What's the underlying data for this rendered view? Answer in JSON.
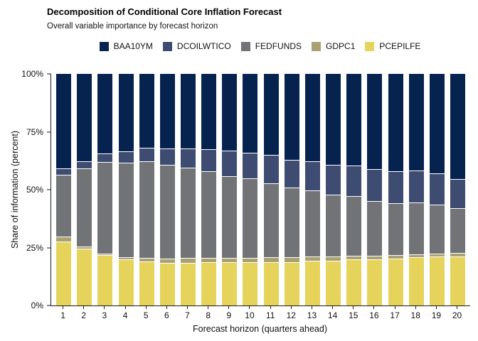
{
  "header": {
    "title": "Decomposition of Conditional Core Inflation Forecast",
    "subtitle": "Overall variable importance by forecast horizon"
  },
  "colors": {
    "background": "#ffffff",
    "axis": "#1a1a1a",
    "segment_separator": "#ffffff",
    "baa10ym": "#062350",
    "dcoilwtico": "#3e4c72",
    "fedfunds": "#727376",
    "gdpc1": "#a9a172",
    "pcepilfe": "#e6d35c"
  },
  "chart_data": {
    "type": "bar",
    "stacked": true,
    "title": "Decomposition of Conditional Core Inflation Forecast",
    "subtitle": "Overall variable importance by forecast horizon",
    "xlabel": "Forecast horizon (quarters ahead)",
    "ylabel": "Share of information (percent)",
    "legend_position": "top-center",
    "grid": false,
    "ylim": [
      0,
      100
    ],
    "y_ticks": [
      "0%",
      "25%",
      "50%",
      "75%",
      "100%"
    ],
    "y_tick_values": [
      0,
      25,
      50,
      75,
      100
    ],
    "categories": [
      "1",
      "2",
      "3",
      "4",
      "5",
      "6",
      "7",
      "8",
      "9",
      "10",
      "11",
      "12",
      "13",
      "14",
      "15",
      "16",
      "17",
      "18",
      "19",
      "20"
    ],
    "stack_order_top_to_bottom": [
      "BAA10YM",
      "DCOILWTICO",
      "FEDFUNDS",
      "GDPC1",
      "PCEPILFE"
    ],
    "series": [
      {
        "name": "BAA10YM",
        "color": "#062350",
        "values": [
          40.7,
          37.6,
          34.4,
          33.3,
          32.0,
          32.2,
          32.2,
          32.5,
          33.0,
          34.2,
          35.1,
          37.1,
          37.6,
          39.2,
          39.5,
          41.0,
          42.0,
          41.7,
          43.0,
          45.3
        ]
      },
      {
        "name": "DCOILWTICO",
        "color": "#3e4c72",
        "values": [
          3.0,
          3.1,
          3.7,
          5.0,
          5.8,
          7.2,
          8.2,
          9.5,
          11.1,
          10.9,
          12.0,
          12.1,
          12.8,
          13.1,
          13.2,
          13.9,
          13.9,
          13.9,
          13.4,
          12.7
        ]
      },
      {
        "name": "FEDFUNDS",
        "color": "#727376",
        "values": [
          26.5,
          34.0,
          39.6,
          40.9,
          41.7,
          40.5,
          39.1,
          37.4,
          35.5,
          34.4,
          32.1,
          30.0,
          28.5,
          26.6,
          25.8,
          23.6,
          22.4,
          22.2,
          21.1,
          19.3
        ]
      },
      {
        "name": "GDPC1",
        "color": "#a9a172",
        "values": [
          2.3,
          0.7,
          0.5,
          0.8,
          1.4,
          1.6,
          2.0,
          1.9,
          1.8,
          1.8,
          2.0,
          2.0,
          1.9,
          1.9,
          1.7,
          1.6,
          1.4,
          1.3,
          1.4,
          1.4
        ]
      },
      {
        "name": "PCEPILFE",
        "color": "#e6d35c",
        "values": [
          27.5,
          24.6,
          21.8,
          20.0,
          19.1,
          18.5,
          18.5,
          18.7,
          18.6,
          18.7,
          18.8,
          18.8,
          19.2,
          19.2,
          19.8,
          19.9,
          20.3,
          20.9,
          21.1,
          21.3
        ]
      }
    ]
  }
}
